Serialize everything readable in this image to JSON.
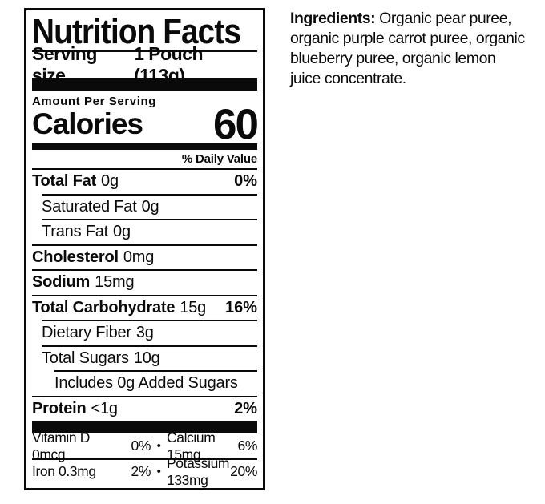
{
  "label": {
    "title": "Nutrition Facts",
    "serving_size_label": "Serving size",
    "serving_size_value": "1 Pouch (113g)",
    "amount_per_serving": "Amount Per Serving",
    "calories_label": "Calories",
    "calories_value": "60",
    "daily_value_header": "% Daily Value",
    "bullet": "•",
    "rows": [
      {
        "name": "Total Fat",
        "value": "0g",
        "dv": "0%"
      },
      {
        "name": "Saturated Fat",
        "value": "0g",
        "dv": ""
      },
      {
        "name": "Trans Fat",
        "value": "0g",
        "dv": ""
      },
      {
        "name": "Cholesterol",
        "value": "0mg",
        "dv": ""
      },
      {
        "name": "Sodium",
        "value": "15mg",
        "dv": ""
      },
      {
        "name": "Total Carbohydrate",
        "value": "15g",
        "dv": "16%"
      },
      {
        "name": "Dietary Fiber",
        "value": "3g",
        "dv": ""
      },
      {
        "name": "Total Sugars",
        "value": "10g",
        "dv": ""
      },
      {
        "name": "Includes 0g Added Sugars",
        "value": "",
        "dv": ""
      },
      {
        "name": "Protein",
        "value": "<1g",
        "dv": "2%"
      }
    ],
    "micronutrients": [
      {
        "left_name": "Vitamin D 0mcg",
        "left_dv": "0%",
        "right_name": "Calcium 15mg",
        "right_dv": "6%"
      },
      {
        "left_name": "Iron 0.3mg",
        "left_dv": "2%",
        "right_name": "Potassium 133mg",
        "right_dv": "20%"
      }
    ]
  },
  "ingredients": {
    "heading": "Ingredients:",
    "text": " Organic pear puree,\norganic purple carrot puree, organic\nblueberry puree, organic lemon\njuice concentrate."
  }
}
